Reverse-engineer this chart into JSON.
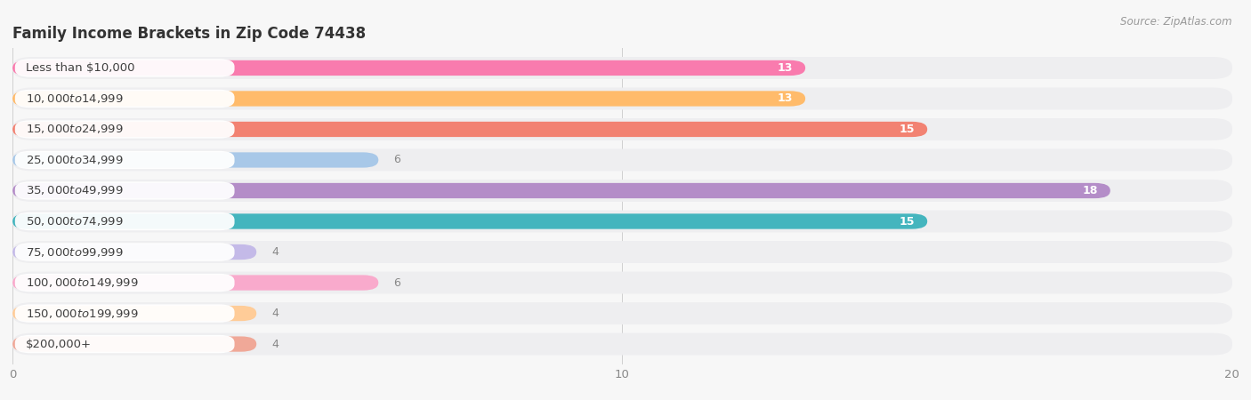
{
  "title": "Family Income Brackets in Zip Code 74438",
  "source": "Source: ZipAtlas.com",
  "categories": [
    "Less than $10,000",
    "$10,000 to $14,999",
    "$15,000 to $24,999",
    "$25,000 to $34,999",
    "$35,000 to $49,999",
    "$50,000 to $74,999",
    "$75,000 to $99,999",
    "$100,000 to $149,999",
    "$150,000 to $199,999",
    "$200,000+"
  ],
  "values": [
    13,
    13,
    15,
    6,
    18,
    15,
    4,
    6,
    4,
    4
  ],
  "bar_colors": [
    "#F97BAE",
    "#FFBB6B",
    "#F28272",
    "#A8C8E8",
    "#B48DC8",
    "#44B5BE",
    "#C4BAE8",
    "#F9AACC",
    "#FFCC98",
    "#F0A898"
  ],
  "bg_track_color": "#EEEEF0",
  "label_box_color": "#FFFFFF",
  "xlim": [
    0,
    20
  ],
  "xticks": [
    0,
    10,
    20
  ],
  "background_color": "#F7F7F7",
  "title_fontsize": 12,
  "label_fontsize": 9.5,
  "value_fontsize": 9,
  "inside_threshold": 7
}
